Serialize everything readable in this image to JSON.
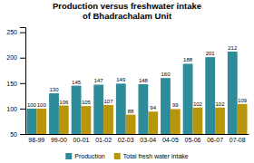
{
  "chart_data": {
    "type": "bar",
    "title": "Production versus freshwater intake\nof Bhadrachalam Unit",
    "categories": [
      "98-99",
      "99-00",
      "00-01",
      "01-02",
      "02-03",
      "03-04",
      "04-05",
      "05-06",
      "06-07",
      "07-08"
    ],
    "series": [
      {
        "name": "Production",
        "color": "#2e8b9a",
        "values": [
          100,
          130,
          145,
          147,
          149,
          148,
          160,
          188,
          201,
          212
        ]
      },
      {
        "name": "Total fresh water intake",
        "color": "#b8960c",
        "values": [
          100,
          106,
          105,
          107,
          88,
          94,
          99,
          102,
          102,
          109
        ]
      }
    ],
    "ylim": [
      50,
      260
    ],
    "yticks": [
      50,
      100,
      150,
      200,
      250
    ],
    "data_labels": true,
    "legend": "bottom",
    "grid": false
  }
}
